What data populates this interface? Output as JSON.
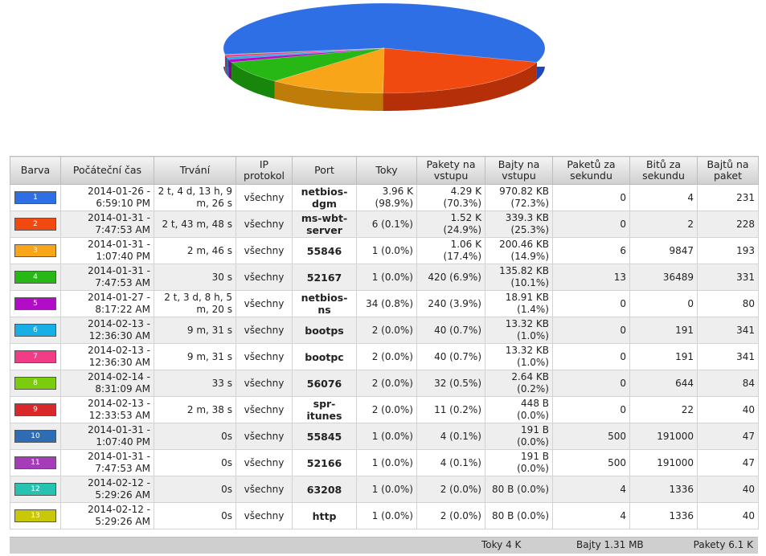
{
  "table": {
    "headers": [
      "Barva",
      "Počáteční čas",
      "Trvání",
      "IP protokol",
      "Port",
      "Toky",
      "Pakety na vstupu",
      "Bajty na vstupu",
      "Paketů za sekundu",
      "Bitů za sekundu",
      "Bajtů na paket"
    ],
    "rows": [
      {
        "id": "1",
        "color": "#2e6fe6",
        "start": "2014-01-26 - 6:59:10 PM",
        "duration": "2 t, 4 d, 13 h, 9 m, 26 s",
        "protocol": "všechny",
        "port": "netbios-dgm",
        "flows": "3.96 K (98.9%)",
        "packets": "4.29 K (70.3%)",
        "bytes": "970.82 KB (72.3%)",
        "pps": "0",
        "bps": "4",
        "bpp": "231"
      },
      {
        "id": "2",
        "color": "#f04a10",
        "start": "2014-01-31 - 7:47:53 AM",
        "duration": "2 t, 43 m, 48 s",
        "protocol": "všechny",
        "port": "ms-wbt-server",
        "flows": "6 (0.1%)",
        "packets": "1.52 K (24.9%)",
        "bytes": "339.3 KB (25.3%)",
        "pps": "0",
        "bps": "2",
        "bpp": "228"
      },
      {
        "id": "3",
        "color": "#f8a51a",
        "start": "2014-01-31 - 1:07:40 PM",
        "duration": "2 m, 46 s",
        "protocol": "všechny",
        "port": "55846",
        "flows": "1 (0.0%)",
        "packets": "1.06 K (17.4%)",
        "bytes": "200.46 KB (14.9%)",
        "pps": "6",
        "bps": "9847",
        "bpp": "193"
      },
      {
        "id": "4",
        "color": "#28b815",
        "start": "2014-01-31 - 7:47:53 AM",
        "duration": "30 s",
        "protocol": "všechny",
        "port": "52167",
        "flows": "1 (0.0%)",
        "packets": "420 (6.9%)",
        "bytes": "135.82 KB (10.1%)",
        "pps": "13",
        "bps": "36489",
        "bpp": "331"
      },
      {
        "id": "5",
        "color": "#b20cc8",
        "start": "2014-01-27 - 8:17:22 AM",
        "duration": "2 t, 3 d, 8 h, 5 m, 20 s",
        "protocol": "všechny",
        "port": "netbios-ns",
        "flows": "34 (0.8%)",
        "packets": "240 (3.9%)",
        "bytes": "18.91 KB (1.4%)",
        "pps": "0",
        "bps": "0",
        "bpp": "80"
      },
      {
        "id": "6",
        "color": "#18aee6",
        "start": "2014-02-13 - 12:36:30 AM",
        "duration": "9 m, 31 s",
        "protocol": "všechny",
        "port": "bootps",
        "flows": "2 (0.0%)",
        "packets": "40 (0.7%)",
        "bytes": "13.32 KB (1.0%)",
        "pps": "0",
        "bps": "191",
        "bpp": "341"
      },
      {
        "id": "7",
        "color": "#f23d86",
        "start": "2014-02-13 - 12:36:30 AM",
        "duration": "9 m, 31 s",
        "protocol": "všechny",
        "port": "bootpc",
        "flows": "2 (0.0%)",
        "packets": "40 (0.7%)",
        "bytes": "13.32 KB (1.0%)",
        "pps": "0",
        "bps": "191",
        "bpp": "341"
      },
      {
        "id": "8",
        "color": "#7ccc0e",
        "start": "2014-02-14 - 8:31:09 AM",
        "duration": "33 s",
        "protocol": "všechny",
        "port": "56076",
        "flows": "2 (0.0%)",
        "packets": "32 (0.5%)",
        "bytes": "2.64 KB (0.2%)",
        "pps": "0",
        "bps": "644",
        "bpp": "84"
      },
      {
        "id": "9",
        "color": "#d8282a",
        "start": "2014-02-13 - 12:33:53 AM",
        "duration": "2 m, 38 s",
        "protocol": "všechny",
        "port": "spr-itunes",
        "flows": "2 (0.0%)",
        "packets": "11 (0.2%)",
        "bytes": "448 B (0.0%)",
        "pps": "0",
        "bps": "22",
        "bpp": "40"
      },
      {
        "id": "10",
        "color": "#2e6db4",
        "start": "2014-01-31 - 1:07:40 PM",
        "duration": "0s",
        "protocol": "všechny",
        "port": "55845",
        "flows": "1 (0.0%)",
        "packets": "4 (0.1%)",
        "bytes": "191 B (0.0%)",
        "pps": "500",
        "bps": "191000",
        "bpp": "47"
      },
      {
        "id": "11",
        "color": "#a53cb8",
        "start": "2014-01-31 - 7:47:53 AM",
        "duration": "0s",
        "protocol": "všechny",
        "port": "52166",
        "flows": "1 (0.0%)",
        "packets": "4 (0.1%)",
        "bytes": "191 B (0.0%)",
        "pps": "500",
        "bps": "191000",
        "bpp": "47"
      },
      {
        "id": "12",
        "color": "#26c4b0",
        "start": "2014-02-12 - 5:29:26 AM",
        "duration": "0s",
        "protocol": "všechny",
        "port": "63208",
        "flows": "1 (0.0%)",
        "packets": "2 (0.0%)",
        "bytes": "80 B (0.0%)",
        "pps": "4",
        "bps": "1336",
        "bpp": "40"
      },
      {
        "id": "13",
        "color": "#c8c808",
        "start": "2014-02-12 - 5:29:26 AM",
        "duration": "0s",
        "protocol": "všechny",
        "port": "http",
        "flows": "1 (0.0%)",
        "packets": "2 (0.0%)",
        "bytes": "80 B (0.0%)",
        "pps": "4",
        "bps": "1336",
        "bpp": "40"
      }
    ]
  },
  "footer": {
    "flows": "Toky 4 K",
    "bytes": "Bajty 1.31 MB",
    "packets": "Pakety 6.1 K"
  },
  "pie": {
    "slices": [
      {
        "value": 72.3,
        "color": "#2e6fe6",
        "side": "#1d46b8"
      },
      {
        "value": 25.3,
        "color": "#f04a10",
        "side": "#b53008"
      },
      {
        "value": 14.9,
        "color": "#f8a51a",
        "side": "#c07c08"
      },
      {
        "value": 10.1,
        "color": "#28b815",
        "side": "#17860a"
      },
      {
        "value": 1.4,
        "color": "#b20cc8",
        "side": "#800890"
      },
      {
        "value": 1.0,
        "color": "#18aee6",
        "side": "#0a80aa"
      },
      {
        "value": 1.0,
        "color": "#f23d86",
        "side": "#b22060"
      },
      {
        "value": 0.2,
        "color": "#7ccc0e",
        "side": "#5a9808"
      }
    ]
  }
}
